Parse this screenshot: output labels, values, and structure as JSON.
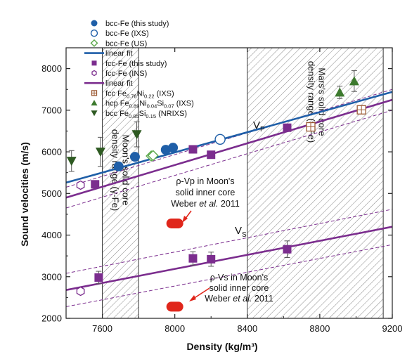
{
  "chart_data": {
    "type": "scatter",
    "xlabel": "Density (kg/m³)",
    "ylabel": "Sound velocities (m/s)",
    "xlim": [
      7400,
      9200
    ],
    "ylim": [
      2000,
      8500
    ],
    "xticks": [
      7600,
      8000,
      8400,
      8800,
      9200
    ],
    "yticks": [
      2000,
      3000,
      4000,
      5000,
      6000,
      7000,
      8000
    ],
    "grid": false,
    "legend_position": "top-left",
    "regions": [
      {
        "name": "moon",
        "x": [
          7600,
          7800
        ],
        "label": [
          "Moon's solid core",
          "density range (γ-Fe)"
        ]
      },
      {
        "name": "mars",
        "x": [
          8400,
          9150
        ],
        "label": [
          "Mars's solid core",
          "density range (γ-Fe)"
        ]
      }
    ],
    "legend": [
      {
        "label": "bcc-Fe (this study)",
        "marker": "circle-filled",
        "color": "#1f5fa8"
      },
      {
        "label": "bcc-Fe (IXS)",
        "marker": "circle-open",
        "color": "#1f5fa8"
      },
      {
        "label": "bcc-Fe (US)",
        "marker": "diamond-open",
        "color": "#5ba84a"
      },
      {
        "label": "linear fit",
        "marker": "line",
        "color": "#1f5fa8"
      },
      {
        "label": "fcc-Fe (this study)",
        "marker": "square-filled",
        "color": "#7b2d8e"
      },
      {
        "label": "fcc-Fe (INS)",
        "marker": "hexagon-open",
        "color": "#7b2d8e"
      },
      {
        "label": "linear fit",
        "marker": "line",
        "color": "#7b2d8e"
      },
      {
        "label": "fcc Fe",
        "sub": [
          "0.78",
          "0.22"
        ],
        "mid": [
          "Ni"
        ],
        "tail": " (IXS)",
        "marker": "square-cross",
        "color": "#9c5a33"
      },
      {
        "label": "hcp Fe",
        "sub": [
          "0.89",
          "0.04",
          "0.07"
        ],
        "mid": [
          "Ni",
          "Si"
        ],
        "tail": " (IXS)",
        "marker": "triangle-up",
        "color": "#3d7a2e"
      },
      {
        "label": "bcc Fe",
        "sub": [
          "0.85",
          "0.15"
        ],
        "mid": [
          "Si"
        ],
        "tail": " (NRIXS)",
        "marker": "triangle-down",
        "color": "#2e5a22"
      }
    ],
    "series": [
      {
        "name": "bcc-Fe (this study)",
        "marker": "circle-filled",
        "color": "#1f5fa8",
        "points": [
          [
            7690,
            5650
          ],
          [
            7780,
            5880
          ],
          [
            7950,
            6050
          ],
          [
            7990,
            6100
          ]
        ]
      },
      {
        "name": "bcc-Fe (IXS)",
        "marker": "circle-open",
        "color": "#1f5fa8",
        "points": [
          [
            8250,
            6300
          ]
        ]
      },
      {
        "name": "bcc-Fe (US)",
        "marker": "diamond-open",
        "color": "#5ba84a",
        "points": [
          [
            7870,
            5900
          ],
          [
            7880,
            5910
          ]
        ]
      },
      {
        "name": "fcc-Fe (this study)",
        "marker": "square-filled",
        "color": "#7b2d8e",
        "points": [
          [
            7560,
            5220
          ],
          [
            7580,
            2980
          ],
          [
            8100,
            6060
          ],
          [
            8100,
            3440
          ],
          [
            8200,
            5930
          ],
          [
            8200,
            3420
          ],
          [
            8620,
            6580
          ],
          [
            8620,
            3660
          ]
        ],
        "err": [
          0,
          150,
          0,
          160,
          0,
          170,
          0,
          200
        ]
      },
      {
        "name": "fcc-Fe (INS)",
        "marker": "hexagon-open",
        "color": "#7b2d8e",
        "points": [
          [
            7480,
            5200
          ],
          [
            7480,
            2650
          ]
        ]
      },
      {
        "name": "fcc Fe0.78Ni0.22 (IXS)",
        "marker": "square-cross",
        "color": "#9c5a33",
        "points": [
          [
            8750,
            6600
          ],
          [
            9030,
            7010
          ]
        ]
      },
      {
        "name": "hcp Fe0.89Ni0.04Si0.07 (IXS)",
        "marker": "triangle-up",
        "color": "#3d7a2e",
        "points": [
          [
            8910,
            7430
          ],
          [
            8990,
            7700
          ]
        ],
        "err": [
          150,
          250
        ]
      },
      {
        "name": "bcc Fe0.85Si0.15 (NRIXS)",
        "marker": "triangle-down",
        "color": "#2e5a22",
        "points": [
          [
            7430,
            5780
          ],
          [
            7590,
            6000
          ],
          [
            7790,
            6420
          ]
        ],
        "err": [
          250,
          350,
          300
        ]
      }
    ],
    "fits": [
      {
        "name": "bcc linear fit",
        "color": "#1f5fa8",
        "x": [
          7400,
          9200
        ],
        "y": [
          5260,
          7440
        ]
      },
      {
        "name": "fcc Vp linear fit",
        "color": "#7b2d8e",
        "x": [
          7400,
          9200
        ],
        "y": [
          4900,
          7250
        ],
        "band_upper": [
          5150,
          7500
        ],
        "band_lower": [
          4650,
          7000
        ]
      },
      {
        "name": "fcc Vs linear fit",
        "color": "#7b2d8e",
        "x": [
          7400,
          9200
        ],
        "y": [
          2680,
          4200
        ],
        "band_upper": [
          3080,
          4620
        ],
        "band_lower": [
          2280,
          3770
        ]
      }
    ],
    "moon_points": [
      {
        "name": "rho-Vp Moon",
        "x": 8000,
        "y": 4280
      },
      {
        "name": "rho-Vs Moon",
        "x": 8000,
        "y": 2280
      }
    ],
    "annotations": {
      "vp": "V",
      "vp_sub": "P",
      "vs": "V",
      "vs_sub": "S",
      "vp_text": [
        "ρ-Vp in Moon's",
        "solid inner core",
        "Weber",
        "et al.",
        "2011"
      ],
      "vs_text": [
        "ρ-Vs in Moon's",
        "solid inner core",
        "Weber",
        "et al.",
        "2011"
      ]
    }
  }
}
